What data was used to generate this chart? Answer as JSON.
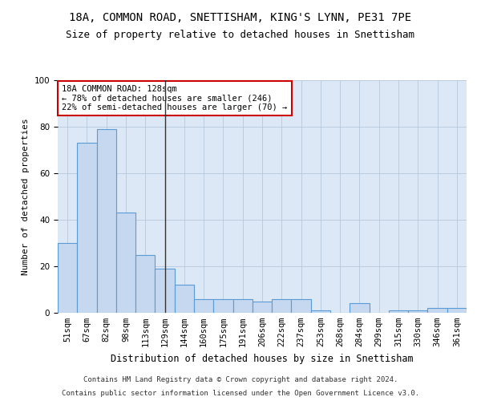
{
  "title1": "18A, COMMON ROAD, SNETTISHAM, KING'S LYNN, PE31 7PE",
  "title2": "Size of property relative to detached houses in Snettisham",
  "xlabel": "Distribution of detached houses by size in Snettisham",
  "ylabel": "Number of detached properties",
  "categories": [
    "51sqm",
    "67sqm",
    "82sqm",
    "98sqm",
    "113sqm",
    "129sqm",
    "144sqm",
    "160sqm",
    "175sqm",
    "191sqm",
    "206sqm",
    "222sqm",
    "237sqm",
    "253sqm",
    "268sqm",
    "284sqm",
    "299sqm",
    "315sqm",
    "330sqm",
    "346sqm",
    "361sqm"
  ],
  "values": [
    30,
    73,
    79,
    43,
    25,
    19,
    12,
    6,
    6,
    6,
    5,
    6,
    6,
    1,
    0,
    4,
    0,
    1,
    1,
    2,
    2
  ],
  "bar_color": "#c5d8f0",
  "bar_edge_color": "#5b9bd5",
  "property_index": 5,
  "annotation_title": "18A COMMON ROAD: 128sqm",
  "annotation_line1": "← 78% of detached houses are smaller (246)",
  "annotation_line2": "22% of semi-detached houses are larger (70) →",
  "annotation_box_color": "#ffffff",
  "annotation_box_edge": "#cc0000",
  "vline_color": "#333333",
  "ylim": [
    0,
    100
  ],
  "footer1": "Contains HM Land Registry data © Crown copyright and database right 2024.",
  "footer2": "Contains public sector information licensed under the Open Government Licence v3.0.",
  "bg_color": "#ffffff",
  "plot_bg_color": "#dce8f5",
  "grid_color": "#b8c8dc",
  "title1_fontsize": 10,
  "title2_fontsize": 9,
  "xlabel_fontsize": 8.5,
  "ylabel_fontsize": 8,
  "tick_fontsize": 7.5,
  "footer_fontsize": 6.5,
  "annot_fontsize": 7.5
}
